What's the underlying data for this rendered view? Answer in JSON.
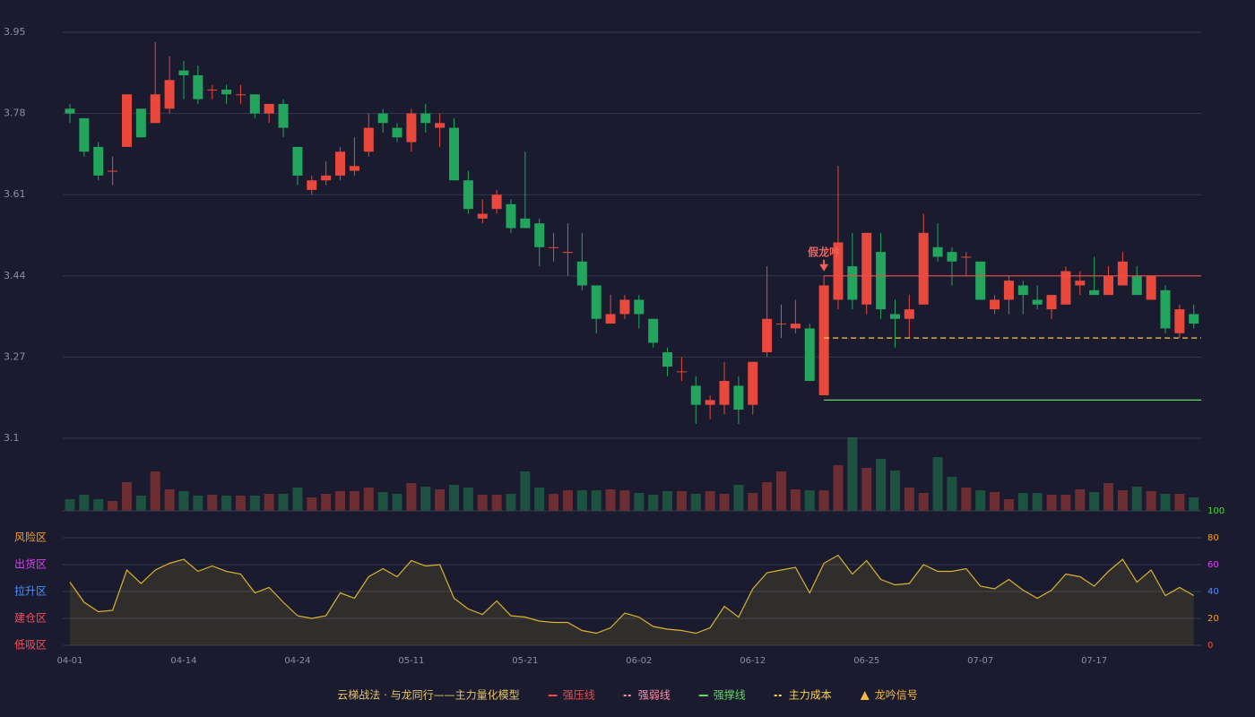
{
  "chart_data": [
    {
      "type": "candlestick",
      "up_color": "#e8493c",
      "down_color": "#23a55e",
      "categories": [
        "04-01",
        null,
        null,
        null,
        null,
        null,
        null,
        null,
        "04-14",
        null,
        null,
        null,
        null,
        null,
        null,
        null,
        "04-24",
        null,
        null,
        null,
        null,
        null,
        null,
        null,
        "05-11",
        null,
        null,
        null,
        null,
        null,
        null,
        null,
        "05-21",
        null,
        null,
        null,
        null,
        null,
        null,
        null,
        "06-02",
        null,
        null,
        null,
        null,
        null,
        null,
        null,
        "06-12",
        null,
        null,
        null,
        null,
        null,
        null,
        null,
        "06-25",
        null,
        null,
        null,
        null,
        null,
        null,
        null,
        "07-07",
        null,
        null,
        null,
        null,
        null,
        null,
        null,
        "07-17",
        null,
        null,
        null,
        null,
        null,
        null,
        null
      ],
      "open": [
        3.79,
        3.77,
        3.71,
        3.66,
        3.71,
        3.79,
        3.76,
        3.79,
        3.87,
        3.86,
        3.83,
        3.83,
        3.82,
        3.82,
        3.78,
        3.8,
        3.71,
        3.62,
        3.64,
        3.65,
        3.66,
        3.7,
        3.78,
        3.75,
        3.72,
        3.78,
        3.75,
        3.75,
        3.64,
        3.56,
        3.58,
        3.59,
        3.56,
        3.55,
        3.5,
        3.49,
        3.47,
        3.42,
        3.34,
        3.36,
        3.39,
        3.35,
        3.28,
        3.24,
        3.21,
        3.17,
        3.17,
        3.21,
        3.17,
        3.28,
        3.34,
        3.33,
        3.33,
        3.19,
        3.39,
        3.46,
        3.38,
        3.49,
        3.36,
        3.35,
        3.38,
        3.5,
        3.49,
        3.48,
        3.47,
        3.37,
        3.39,
        3.42,
        3.39,
        3.37,
        3.38,
        3.42,
        3.41,
        3.4,
        3.42,
        3.44,
        3.39,
        3.41,
        3.32,
        3.36
      ],
      "close": [
        3.78,
        3.7,
        3.65,
        3.66,
        3.82,
        3.73,
        3.82,
        3.85,
        3.86,
        3.81,
        3.83,
        3.82,
        3.82,
        3.78,
        3.8,
        3.75,
        3.65,
        3.64,
        3.65,
        3.7,
        3.67,
        3.75,
        3.76,
        3.73,
        3.78,
        3.76,
        3.76,
        3.64,
        3.58,
        3.57,
        3.61,
        3.54,
        3.54,
        3.5,
        3.5,
        3.49,
        3.42,
        3.35,
        3.36,
        3.39,
        3.36,
        3.3,
        3.25,
        3.24,
        3.17,
        3.18,
        3.22,
        3.16,
        3.26,
        3.35,
        3.34,
        3.34,
        3.22,
        3.42,
        3.51,
        3.39,
        3.53,
        3.37,
        3.35,
        3.37,
        3.53,
        3.48,
        3.47,
        3.48,
        3.39,
        3.39,
        3.43,
        3.4,
        3.38,
        3.4,
        3.45,
        3.43,
        3.4,
        3.44,
        3.47,
        3.4,
        3.44,
        3.33,
        3.37,
        3.34
      ],
      "high": [
        3.8,
        3.77,
        3.72,
        3.69,
        3.82,
        3.79,
        3.93,
        3.9,
        3.89,
        3.88,
        3.84,
        3.84,
        3.84,
        3.82,
        3.8,
        3.81,
        3.71,
        3.65,
        3.68,
        3.71,
        3.73,
        3.78,
        3.79,
        3.76,
        3.79,
        3.8,
        3.78,
        3.77,
        3.66,
        3.6,
        3.62,
        3.6,
        3.7,
        3.56,
        3.53,
        3.55,
        3.53,
        3.42,
        3.4,
        3.4,
        3.4,
        3.35,
        3.29,
        3.27,
        3.23,
        3.19,
        3.26,
        3.23,
        3.26,
        3.46,
        3.38,
        3.39,
        3.34,
        3.44,
        3.67,
        3.53,
        3.53,
        3.53,
        3.39,
        3.4,
        3.57,
        3.55,
        3.5,
        3.49,
        3.47,
        3.4,
        3.44,
        3.43,
        3.42,
        3.4,
        3.46,
        3.45,
        3.48,
        3.46,
        3.49,
        3.46,
        3.44,
        3.42,
        3.38,
        3.38
      ],
      "low": [
        3.76,
        3.69,
        3.64,
        3.63,
        3.71,
        3.73,
        3.76,
        3.78,
        3.81,
        3.8,
        3.81,
        3.8,
        3.8,
        3.77,
        3.76,
        3.73,
        3.63,
        3.61,
        3.63,
        3.64,
        3.65,
        3.69,
        3.74,
        3.72,
        3.7,
        3.74,
        3.71,
        3.64,
        3.57,
        3.55,
        3.57,
        3.53,
        3.54,
        3.46,
        3.47,
        3.44,
        3.41,
        3.32,
        3.34,
        3.35,
        3.33,
        3.29,
        3.23,
        3.22,
        3.13,
        3.14,
        3.15,
        3.13,
        3.15,
        3.27,
        3.31,
        3.32,
        3.22,
        3.19,
        3.37,
        3.37,
        3.36,
        3.35,
        3.29,
        3.31,
        3.38,
        3.47,
        3.42,
        3.44,
        3.39,
        3.36,
        3.36,
        3.36,
        3.37,
        3.35,
        3.38,
        3.4,
        3.4,
        3.4,
        3.42,
        3.4,
        3.39,
        3.32,
        3.31,
        3.33
      ],
      "volume": [
        13,
        18,
        13,
        11,
        32,
        17,
        44,
        24,
        22,
        17,
        18,
        17,
        17,
        17,
        19,
        19,
        26,
        15,
        19,
        22,
        22,
        26,
        21,
        19,
        31,
        27,
        24,
        29,
        26,
        18,
        18,
        19,
        44,
        26,
        19,
        23,
        23,
        23,
        24,
        23,
        20,
        18,
        22,
        22,
        19,
        22,
        19,
        29,
        20,
        32,
        44,
        24,
        23,
        23,
        51,
        82,
        48,
        58,
        45,
        26,
        20,
        60,
        38,
        26,
        23,
        21,
        13,
        20,
        20,
        18,
        18,
        24,
        21,
        31,
        23,
        27,
        22,
        19,
        19,
        15
      ],
      "volume_lim": [
        0,
        85
      ],
      "ylim": [
        3.1,
        3.95
      ],
      "yticks": [
        3.1,
        3.27,
        3.44,
        3.61,
        3.78,
        3.95
      ],
      "grid": true,
      "legend_title": "云梯战法 · 与龙同行——主力量化模型",
      "lines": [
        {
          "name": "强压线",
          "color": "#f04a4a",
          "value": 3.44,
          "start": 53,
          "dash": false
        },
        {
          "name": "强弱线",
          "color": "#ff8fa8",
          "value": 3.31,
          "start": 53,
          "dash": true
        },
        {
          "name": "强撑线",
          "color": "#5fd85f",
          "value": 3.18,
          "start": 53,
          "dash": false
        },
        {
          "name": "主力成本",
          "color": "#ffd23f",
          "value": 3.31,
          "start": 53,
          "dash": true
        }
      ],
      "signal": {
        "name": "龙吟信号",
        "color": "#f5b942",
        "marker": "triangle"
      },
      "annotations": [
        {
          "text": "假龙吟",
          "index": 53,
          "color": "#f0605a"
        }
      ]
    },
    {
      "type": "line",
      "color": "#d9b42a",
      "values": [
        47,
        32,
        25,
        26,
        56,
        46,
        56,
        61,
        64,
        55,
        59,
        55,
        53,
        39,
        43,
        32,
        22,
        20,
        22,
        39,
        35,
        51,
        57,
        51,
        63,
        59,
        60,
        35,
        27,
        23,
        33,
        22,
        21,
        18,
        17,
        17,
        11,
        9,
        13,
        24,
        21,
        14,
        12,
        11,
        9,
        13,
        29,
        21,
        42,
        54,
        56,
        58,
        39,
        61,
        67,
        53,
        63,
        49,
        45,
        46,
        60,
        55,
        55,
        57,
        44,
        42,
        49,
        41,
        35,
        41,
        53,
        51,
        44,
        55,
        64,
        47,
        56,
        37,
        43,
        37
      ],
      "ylim": [
        0,
        100
      ],
      "yticks": [
        0,
        20,
        40,
        60,
        80,
        100
      ],
      "ytick_colors": [
        "#ff4a4a",
        "#ff9f1a",
        "#4a90ff",
        "#e040fb",
        "#ff9f1a",
        "#3ddc3d"
      ],
      "grid": true,
      "zones": [
        {
          "value": 80,
          "label": "风险区",
          "color": "#ff9f1a"
        },
        {
          "value": 60,
          "label": "出货区",
          "color": "#e040fb"
        },
        {
          "value": 40,
          "label": "拉升区",
          "color": "#4a90ff"
        },
        {
          "value": 20,
          "label": "建仓区",
          "color": "#ff4a5a"
        },
        {
          "value": 0,
          "label": "低吸区",
          "color": "#ff4a5a"
        }
      ]
    }
  ]
}
